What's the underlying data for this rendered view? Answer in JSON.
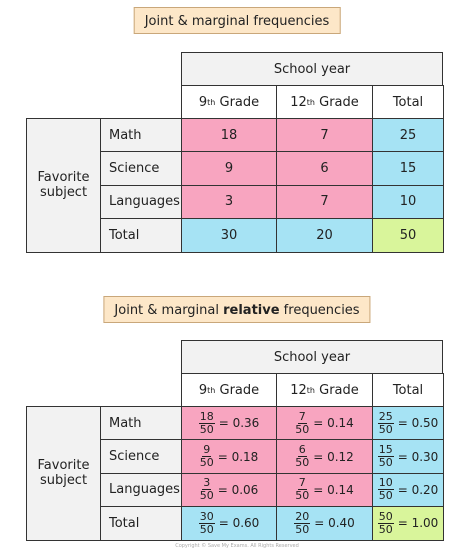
{
  "tables": [
    {
      "title": [
        {
          "text": "Joint & marginal frequencies"
        }
      ],
      "group_header": "School year",
      "columns": [
        {
          "base": "9",
          "sup": "th",
          "rest": " Grade"
        },
        {
          "base": "12",
          "sup": "th",
          "rest": " Grade"
        },
        {
          "base": "Total"
        }
      ],
      "row_group": "Favorite subject",
      "rows": [
        {
          "label": "Math",
          "cells": [
            "18",
            "7",
            "25"
          ]
        },
        {
          "label": "Science",
          "cells": [
            "9",
            "6",
            "15"
          ]
        },
        {
          "label": "Languages",
          "cells": [
            "3",
            "7",
            "10"
          ]
        },
        {
          "label": "Total",
          "cells": [
            "30",
            "20",
            "50"
          ]
        }
      ]
    },
    {
      "title": [
        {
          "text": "Joint & marginal "
        },
        {
          "text": "relative",
          "bold": true
        },
        {
          "text": " frequencies"
        }
      ],
      "group_header": "School year",
      "columns": [
        {
          "base": "9",
          "sup": "th",
          "rest": " Grade"
        },
        {
          "base": "12",
          "sup": "th",
          "rest": " Grade"
        },
        {
          "base": "Total"
        }
      ],
      "row_group": "Favorite subject",
      "rows": [
        {
          "label": "Math",
          "cells": [
            {
              "num": "18",
              "den": "50",
              "result": "= 0.36"
            },
            {
              "num": "7",
              "den": "50",
              "result": "= 0.14"
            },
            {
              "num": "25",
              "den": "50",
              "result": "= 0.50"
            }
          ]
        },
        {
          "label": "Science",
          "cells": [
            {
              "num": "9",
              "den": "50",
              "result": "= 0.18"
            },
            {
              "num": "6",
              "den": "50",
              "result": "= 0.12"
            },
            {
              "num": "15",
              "den": "50",
              "result": "= 0.30"
            }
          ]
        },
        {
          "label": "Languages",
          "cells": [
            {
              "num": "3",
              "den": "50",
              "result": "= 0.06"
            },
            {
              "num": "7",
              "den": "50",
              "result": "= 0.14"
            },
            {
              "num": "10",
              "den": "50",
              "result": "= 0.20"
            }
          ]
        },
        {
          "label": "Total",
          "cells": [
            {
              "num": "30",
              "den": "50",
              "result": "= 0.60"
            },
            {
              "num": "20",
              "den": "50",
              "result": "= 0.40"
            },
            {
              "num": "50",
              "den": "50",
              "result": "= 1.00"
            }
          ]
        }
      ]
    }
  ],
  "footer": "Copyright © Save My Exams. All Rights Reserved"
}
